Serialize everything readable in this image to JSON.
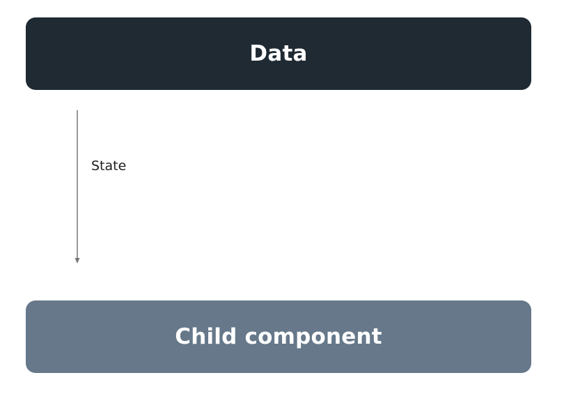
{
  "nodes": {
    "data": {
      "label": "Data",
      "color": "#1f2a33"
    },
    "child": {
      "label": "Child component",
      "color": "#66788a"
    }
  },
  "edge": {
    "label": "State",
    "direction": "down",
    "color": "#777777"
  }
}
